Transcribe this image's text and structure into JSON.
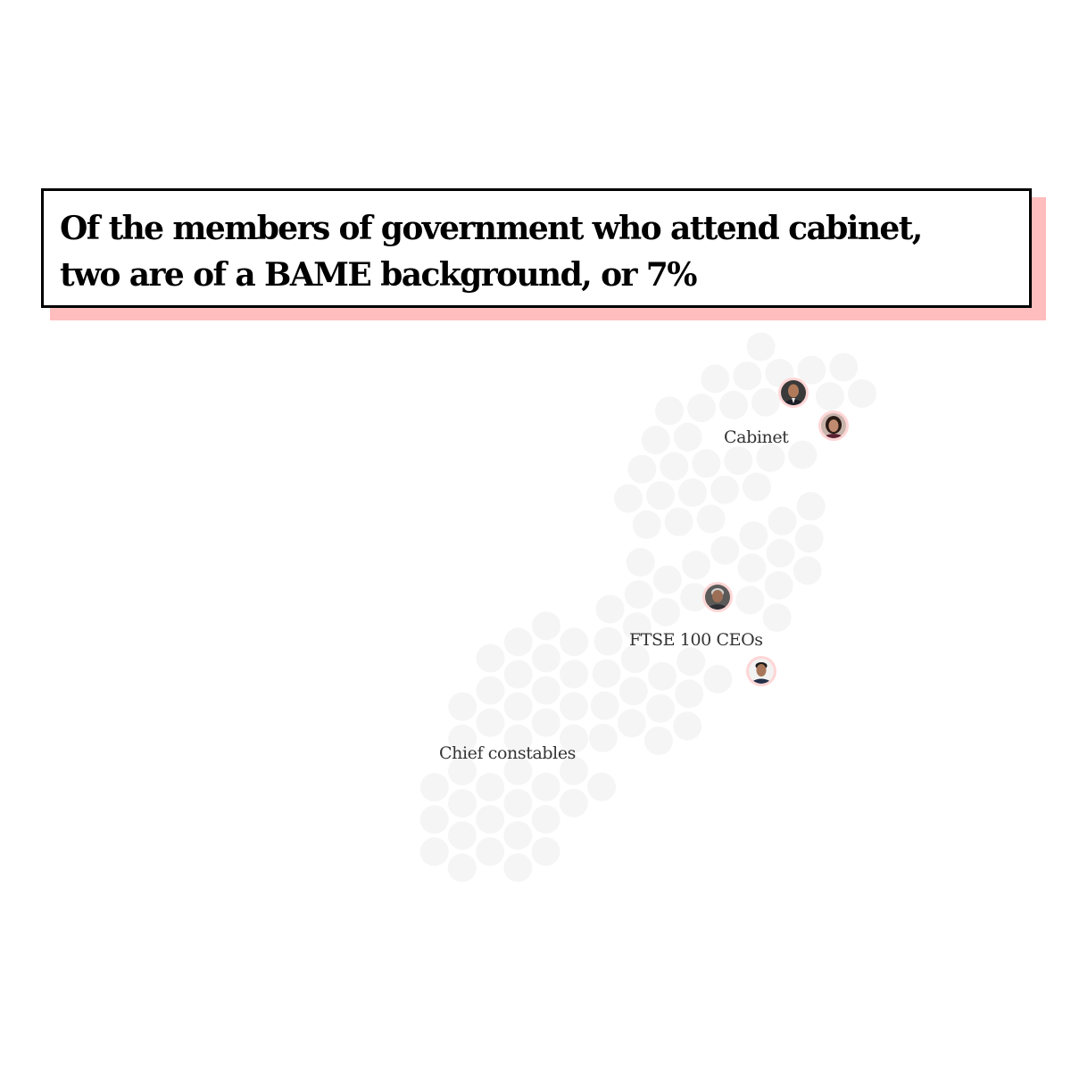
{
  "headline": {
    "line1": "Of the members of government who attend cabinet,",
    "line2": "two are of a BAME background, or 7%"
  },
  "groups": [
    {
      "label": "Cabinet"
    },
    {
      "label": "FTSE 100 CEOs"
    },
    {
      "label": "Chief constables"
    }
  ],
  "colors": {
    "headline_shadow": "#ffbdbd",
    "bubble": "#f5f5f5",
    "highlight_ring": "#ffd6d6",
    "label_text": "#333333"
  }
}
